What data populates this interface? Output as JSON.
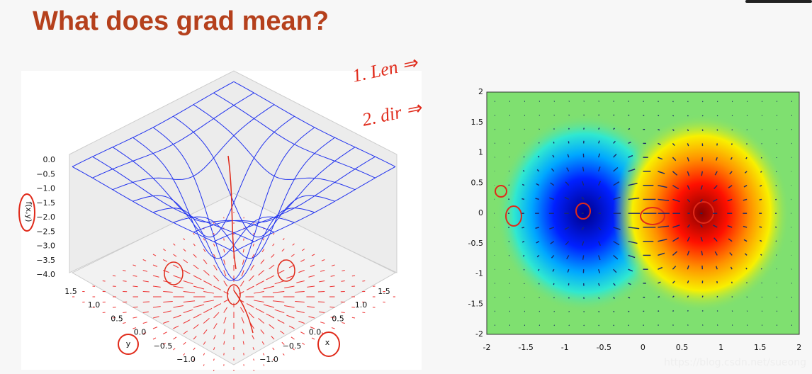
{
  "title": "What  does grad mean?",
  "annotations": [
    "1. Len ⇒",
    "2. dir ⇒"
  ],
  "surface_plot": {
    "z_label": "f(x,y)",
    "z_ticks": [
      "0.0",
      "−0.5",
      "−1.0",
      "−1.5",
      "−2.0",
      "−2.5",
      "−3.0",
      "−3.5",
      "−4.0"
    ],
    "y_label": "y",
    "y_ticks": [
      "1.5",
      "1.0",
      "0.5",
      "0.0",
      "−0.5",
      "−1.0"
    ],
    "x_label": "x",
    "x_ticks": [
      "1.5",
      "1.0",
      "0.5",
      "0.0",
      "−0.5",
      "−1.0"
    ]
  },
  "heatmap": {
    "y_ticks": [
      "2",
      "1.5",
      "1",
      "0.5",
      "0",
      "-0.5",
      "-1",
      "-1.5",
      "-2"
    ],
    "x_ticks": [
      "-2",
      "-1.5",
      "-1",
      "-0.5",
      "0",
      "0.5",
      "1",
      "1.5",
      "2"
    ]
  },
  "watermark": "https://blog.csdn.net/sueong"
}
